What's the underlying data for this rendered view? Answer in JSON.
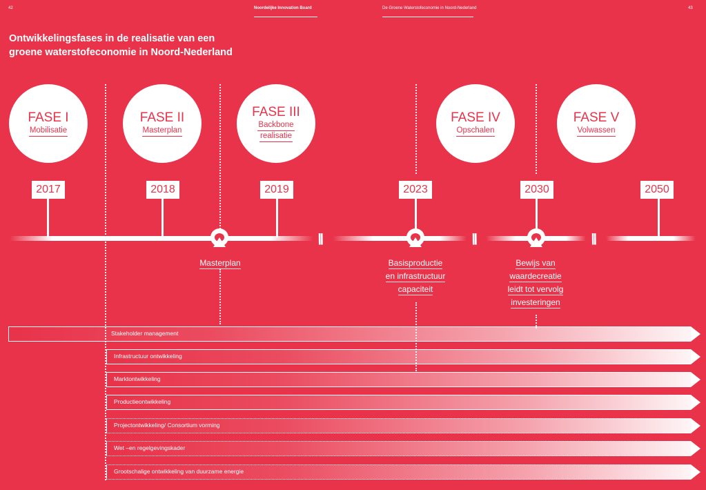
{
  "header": {
    "left_page_number": "42",
    "left_title": "Noordelijke Innovation Board",
    "right_title": "De Groene Waterstofeconomie in Noord-Nederland",
    "right_page_number": "43"
  },
  "title": {
    "line1": "Ontwikkelingsfases in de realisatie van een",
    "line2": "groene waterstofeconomie in Noord-Nederland"
  },
  "phases": [
    {
      "name": "FASE I",
      "sub1": "Mobilisatie",
      "sub2": ""
    },
    {
      "name": "FASE II",
      "sub1": "Masterplan",
      "sub2": ""
    },
    {
      "name": "FASE III",
      "sub1": "Backbone",
      "sub2": "realisatie"
    },
    {
      "name": "FASE IV",
      "sub1": "Opschalen",
      "sub2": ""
    },
    {
      "name": "FASE V",
      "sub1": "Volwassen",
      "sub2": ""
    }
  ],
  "years": [
    "2017",
    "2018",
    "2019",
    "2023",
    "2030",
    "2050"
  ],
  "milestones": [
    {
      "lines": [
        "Masterplan"
      ]
    },
    {
      "lines": [
        "Basisproductie",
        "en infrastructuur",
        "capaciteit"
      ]
    },
    {
      "lines": [
        "Bewijs van",
        "waardecreatie",
        "leidt tot vervolg",
        "investeringen"
      ]
    }
  ],
  "bars": [
    {
      "label": "Stakeholder management",
      "style": "solid"
    },
    {
      "label": "Infrastructuur ontwikkeling",
      "style": "solid"
    },
    {
      "label": "Marktontwikkeling",
      "style": "solid"
    },
    {
      "label": "Productieontwikkeling",
      "style": "solid"
    },
    {
      "label": "Projectontwikkeling/ Consortium vorming",
      "style": "dotted"
    },
    {
      "label": "Wet –en regelgevingskader",
      "style": "dotted"
    },
    {
      "label": "Grootschalige ontwikkeling van duurzame energie",
      "style": "dotted"
    }
  ],
  "colors": {
    "background": "#e8334a",
    "foreground": "#ffffff"
  }
}
